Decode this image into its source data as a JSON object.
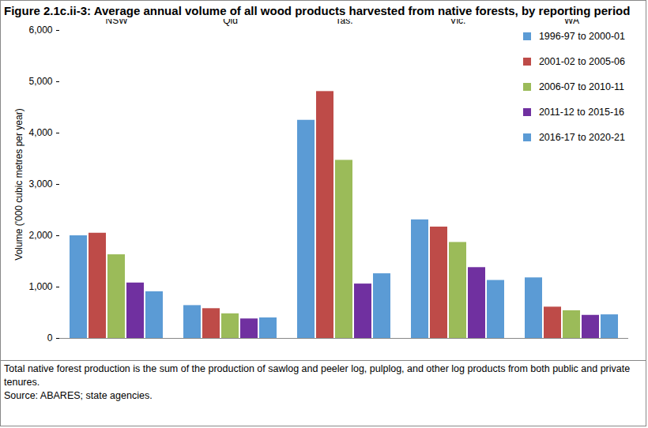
{
  "chart_data": {
    "type": "bar",
    "title": "Figure 2.1c.ii-3: Average annual volume of all wood products harvested from native forests, by reporting period",
    "y_label": "Volume ('000 cubic metres per year)",
    "categories": [
      "NSW",
      "Qld",
      "Tas.",
      "Vic.",
      "WA"
    ],
    "series": [
      {
        "name": "1996-97 to 2000-01",
        "color": "#5b9bd5",
        "values": [
          2000,
          640,
          4250,
          2310,
          1180
        ]
      },
      {
        "name": "2001-02 to 2005-06",
        "color": "#be4b48",
        "values": [
          2050,
          580,
          4810,
          2170,
          610
        ]
      },
      {
        "name": "2006-07 to 2010-11",
        "color": "#9bbb59",
        "values": [
          1630,
          480,
          3470,
          1870,
          540
        ]
      },
      {
        "name": "2011-12 to 2015-16",
        "color": "#7030a0",
        "values": [
          1080,
          380,
          1060,
          1380,
          450
        ]
      },
      {
        "name": "2016-17 to 2020-21",
        "color": "#5b9bd5",
        "values": [
          910,
          400,
          1260,
          1130,
          460
        ]
      }
    ],
    "ylim": [
      0,
      6000
    ],
    "yticks": [
      0,
      {
        "value": 1000,
        "label": "1,000"
      },
      {
        "value": 2000,
        "label": "2,000"
      },
      {
        "value": 3000,
        "label": "3,000"
      },
      {
        "value": 4000,
        "label": "4,000"
      },
      {
        "value": 5000,
        "label": "5,000"
      },
      {
        "value": 6000,
        "label": "6,000"
      }
    ],
    "grid": false,
    "legend": "top-right",
    "notes": [
      "Total native forest production is the sum of the production of sawlog and peeler log, pulplog, and other log products from both public and private tenures.",
      "Source: ABARES; state agencies."
    ]
  }
}
